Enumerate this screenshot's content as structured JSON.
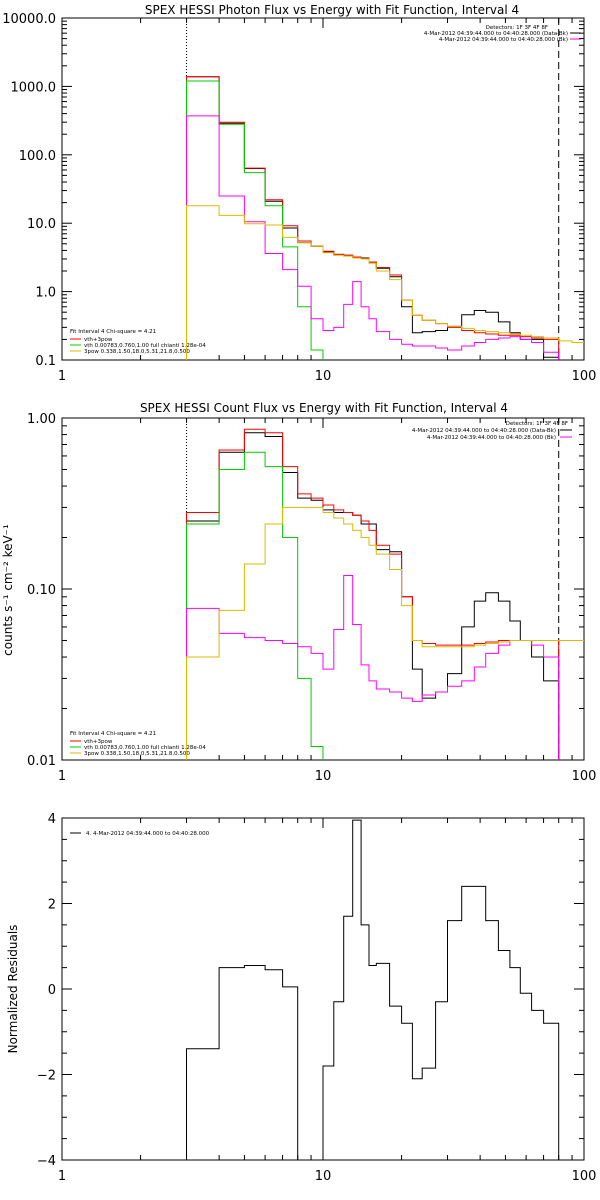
{
  "chart_data": [
    {
      "type": "line",
      "title": "SPEX HESSI Photon Flux vs Energy with Fit Function, Interval 4",
      "xlabel": "",
      "ylabel": "",
      "xscale": "log",
      "yscale": "log",
      "xlim": [
        1,
        100
      ],
      "ylim": [
        0.1,
        10000
      ],
      "x_ticks": [
        {
          "v": 1,
          "label": "1"
        },
        {
          "v": 10,
          "label": "10"
        },
        {
          "v": 100,
          "label": "100"
        }
      ],
      "y_ticks": [
        {
          "v": 0.1,
          "label": "0.1"
        },
        {
          "v": 1,
          "label": "1.0"
        },
        {
          "v": 10,
          "label": "10.0"
        },
        {
          "v": 100,
          "label": "100.0"
        },
        {
          "v": 1000,
          "label": "1000.0"
        },
        {
          "v": 10000,
          "label": "10000.0"
        }
      ],
      "vlines": [
        {
          "x": 3.0,
          "style": "dotted"
        },
        {
          "x": 80.0,
          "style": "dashed"
        }
      ],
      "header_lines": [
        "Detectors: 1F 3F 4F 8F",
        "4-Mar-2012 04:39:44.000 to 04:40:28.000 (Data-Bk)",
        "4-Mar-2012 04:39:44.000 to 04:40:28.000 (Bk)"
      ],
      "header_swatches": [
        "#000000",
        "#ff00ff"
      ],
      "fit_info": {
        "lines": [
          "Fit Interval  4    Chi-square = 4.21",
          "vth+3pow",
          "vth  0.00783,0.760,1.00   full chianti 1.28e-04",
          "3pow  0.338,1.50,18.0,5.31,21.8,0.500"
        ],
        "colors": [
          "",
          "#ff0000",
          "#00cc00",
          "#ddbb00"
        ]
      },
      "series": [
        {
          "name": "",
          "color": "#000000",
          "edges": [
            3,
            4,
            5,
            6,
            7,
            8,
            9,
            10,
            11,
            12,
            13,
            14,
            15,
            16,
            18,
            20,
            22,
            24,
            27,
            30,
            34,
            38,
            42,
            47,
            52,
            57,
            63,
            70,
            80
          ],
          "values": [
            1380,
            290,
            63,
            21,
            8.5,
            5.2,
            4.6,
            3.8,
            3.5,
            3.4,
            3.2,
            3.1,
            2.7,
            2.2,
            1.65,
            0.6,
            0.25,
            0.26,
            0.27,
            0.31,
            0.46,
            0.53,
            0.5,
            0.36,
            0.25,
            0.2,
            0.2,
            0.11
          ]
        },
        {
          "name": "",
          "color": "#ff0000",
          "edges": [
            3,
            4,
            5,
            6,
            7,
            8,
            9,
            10,
            11,
            12,
            13,
            14,
            15,
            16,
            18,
            20,
            22,
            24,
            27,
            30,
            34,
            38,
            42,
            47,
            52,
            57,
            63,
            70,
            80
          ],
          "values": [
            1380,
            300,
            64,
            22,
            9.2,
            5.5,
            4.6,
            3.9,
            3.5,
            3.4,
            3.2,
            3.05,
            2.7,
            2.25,
            1.75,
            0.75,
            0.45,
            0.38,
            0.34,
            0.3,
            0.27,
            0.25,
            0.24,
            0.23,
            0.23,
            0.22,
            0.21,
            0.2
          ]
        },
        {
          "name": "",
          "color": "#00cc00",
          "edges": [
            3,
            4,
            5,
            6,
            7,
            8,
            9,
            10
          ],
          "values": [
            1200,
            280,
            55,
            18,
            4.5,
            0.6,
            0.14
          ]
        },
        {
          "name": "",
          "color": "#ff00ff",
          "edges": [
            3,
            4,
            5,
            6,
            7,
            8,
            9,
            10,
            11,
            12,
            13,
            14,
            15,
            16,
            18,
            20,
            22,
            24,
            27,
            30,
            34,
            38,
            42,
            47,
            52,
            57,
            63,
            70,
            80
          ],
          "values": [
            370,
            25,
            10.5,
            3.6,
            2.1,
            1.2,
            0.4,
            0.27,
            0.3,
            0.65,
            1.4,
            0.6,
            0.4,
            0.26,
            0.2,
            0.17,
            0.16,
            0.16,
            0.15,
            0.14,
            0.16,
            0.18,
            0.2,
            0.21,
            0.22,
            0.2,
            0.18,
            0.13
          ]
        },
        {
          "name": "",
          "color": "#ddbb00",
          "edges": [
            3,
            4,
            5,
            6,
            7,
            8,
            9,
            10,
            11,
            12,
            13,
            14,
            15,
            16,
            18,
            20,
            22,
            24,
            27,
            30,
            34,
            38,
            42,
            47,
            52,
            57,
            63,
            70,
            80,
            90,
            100
          ],
          "values": [
            18,
            13,
            9.8,
            9.4,
            6.2,
            5.2,
            4.6,
            3.7,
            3.4,
            3.3,
            3.1,
            3.0,
            2.6,
            2.0,
            1.5,
            0.75,
            0.45,
            0.38,
            0.34,
            0.31,
            0.29,
            0.27,
            0.26,
            0.25,
            0.24,
            0.23,
            0.22,
            0.21,
            0.19,
            0.18
          ]
        }
      ]
    },
    {
      "type": "line",
      "title": "SPEX HESSI Count Flux vs Energy with Fit Function, Interval 4",
      "xlabel": "",
      "ylabel": "counts s⁻¹ cm⁻² keV⁻¹",
      "xscale": "log",
      "yscale": "log",
      "xlim": [
        1,
        100
      ],
      "ylim": [
        0.01,
        1.0
      ],
      "x_ticks": [
        {
          "v": 1,
          "label": "1"
        },
        {
          "v": 10,
          "label": "10"
        },
        {
          "v": 100,
          "label": "100"
        }
      ],
      "y_ticks": [
        {
          "v": 0.01,
          "label": "0.01"
        },
        {
          "v": 0.1,
          "label": "0.10"
        },
        {
          "v": 1,
          "label": "1.00"
        }
      ],
      "vlines": [
        {
          "x": 3.0,
          "style": "dotted"
        },
        {
          "x": 80.0,
          "style": "dashed"
        }
      ],
      "header_lines": [
        "Detectors: 1F 3F 4F 8F",
        "4-Mar-2012 04:39:44.000 to 04:40:28.000 (Data-Bk)",
        "4-Mar-2012 04:39:44.000 to 04:40:28.000 (Bk)"
      ],
      "header_swatches": [
        "#000000",
        "#ff00ff"
      ],
      "fit_info": {
        "lines": [
          "Fit Interval  4    Chi-square = 4.21",
          "vth+3pow",
          "vth  0.00783,0.760,1.00   full chianti 1.28e-04",
          "3pow  0.338,1.50,18.0,5.31,21.8,0.500"
        ],
        "colors": [
          "",
          "#ff0000",
          "#00cc00",
          "#ddbb00"
        ]
      },
      "series": [
        {
          "name": "",
          "color": "#000000",
          "edges": [
            3,
            4,
            5,
            6,
            7,
            8,
            9,
            10,
            11,
            12,
            13,
            14,
            15,
            16,
            18,
            20,
            22,
            24,
            27,
            30,
            34,
            38,
            42,
            47,
            52,
            57,
            63,
            70,
            80
          ],
          "values": [
            0.25,
            0.63,
            0.82,
            0.78,
            0.48,
            0.34,
            0.33,
            0.29,
            0.28,
            0.28,
            0.27,
            0.24,
            0.24,
            0.17,
            0.165,
            0.09,
            0.034,
            0.023,
            0.025,
            0.032,
            0.06,
            0.085,
            0.095,
            0.085,
            0.065,
            0.05,
            0.04,
            0.029
          ]
        },
        {
          "name": "",
          "color": "#ff0000",
          "edges": [
            3,
            4,
            5,
            6,
            7,
            8,
            9,
            10,
            11,
            12,
            13,
            14,
            15,
            16,
            18,
            20,
            22,
            24,
            27,
            30,
            34,
            38,
            42,
            47,
            52,
            57,
            63,
            70,
            80
          ],
          "values": [
            0.28,
            0.65,
            0.86,
            0.82,
            0.52,
            0.36,
            0.34,
            0.31,
            0.29,
            0.28,
            0.27,
            0.25,
            0.22,
            0.18,
            0.16,
            0.09,
            0.05,
            0.048,
            0.047,
            0.047,
            0.047,
            0.048,
            0.049,
            0.05,
            0.05,
            0.05,
            0.05,
            0.05
          ]
        },
        {
          "name": "",
          "color": "#00cc00",
          "edges": [
            3,
            4,
            5,
            6,
            7,
            8,
            9,
            10
          ],
          "values": [
            0.24,
            0.5,
            0.63,
            0.52,
            0.2,
            0.03,
            0.012
          ]
        },
        {
          "name": "",
          "color": "#ff00ff",
          "edges": [
            3,
            4,
            5,
            6,
            7,
            8,
            9,
            10,
            11,
            12,
            13,
            14,
            15,
            16,
            18,
            20,
            22,
            24,
            27,
            30,
            34,
            38,
            42,
            47,
            52,
            57,
            63,
            70,
            80
          ],
          "values": [
            0.077,
            0.055,
            0.052,
            0.05,
            0.048,
            0.046,
            0.042,
            0.034,
            0.058,
            0.12,
            0.062,
            0.036,
            0.029,
            0.026,
            0.025,
            0.023,
            0.022,
            0.024,
            0.025,
            0.027,
            0.029,
            0.035,
            0.042,
            0.047,
            0.05,
            0.05,
            0.047,
            0.04
          ]
        },
        {
          "name": "",
          "color": "#ddbb00",
          "edges": [
            3,
            4,
            5,
            6,
            7,
            8,
            9,
            10,
            11,
            12,
            13,
            14,
            15,
            16,
            18,
            20,
            22,
            24,
            27,
            30,
            34,
            38,
            42,
            47,
            52,
            57,
            63,
            70,
            80,
            90,
            100
          ],
          "values": [
            0.04,
            0.075,
            0.14,
            0.24,
            0.3,
            0.3,
            0.3,
            0.28,
            0.26,
            0.24,
            0.22,
            0.2,
            0.18,
            0.16,
            0.13,
            0.08,
            0.05,
            0.046,
            0.046,
            0.046,
            0.046,
            0.047,
            0.048,
            0.049,
            0.05,
            0.05,
            0.05,
            0.05,
            0.05,
            0.05
          ]
        }
      ]
    },
    {
      "type": "line",
      "title": "",
      "xlabel": "",
      "ylabel": "Normalized Residuals",
      "xscale": "log",
      "yscale": "linear",
      "xlim": [
        1,
        100
      ],
      "ylim": [
        -4,
        4
      ],
      "x_ticks": [
        {
          "v": 1,
          "label": "1"
        },
        {
          "v": 10,
          "label": "10"
        },
        {
          "v": 100,
          "label": "100"
        }
      ],
      "y_ticks": [
        {
          "v": -4,
          "label": "−4"
        },
        {
          "v": -2,
          "label": "−2"
        },
        {
          "v": 0,
          "label": "0"
        },
        {
          "v": 2,
          "label": "2"
        },
        {
          "v": 4,
          "label": "4"
        }
      ],
      "vlines": [],
      "legend_entries": [
        "4.  4-Mar-2012 04:39:44.000 to 04:40:28.000"
      ],
      "series": [
        {
          "name": "",
          "color": "#000000",
          "edges": [
            3,
            4,
            5,
            6,
            7,
            8,
            9,
            10,
            11,
            12,
            13,
            14,
            15,
            16,
            18,
            20,
            22,
            24,
            27,
            30,
            34,
            38,
            42,
            47,
            52,
            57,
            63,
            70,
            80
          ],
          "values": [
            -1.4,
            0.5,
            0.55,
            0.45,
            0.05,
            -4.2,
            -4.0,
            -1.8,
            -0.3,
            1.7,
            3.95,
            1.5,
            0.55,
            0.6,
            -0.4,
            -0.8,
            -2.1,
            -1.85,
            -0.3,
            1.6,
            2.4,
            2.4,
            1.6,
            0.9,
            0.5,
            -0.1,
            -0.5,
            -0.8
          ]
        }
      ]
    }
  ]
}
